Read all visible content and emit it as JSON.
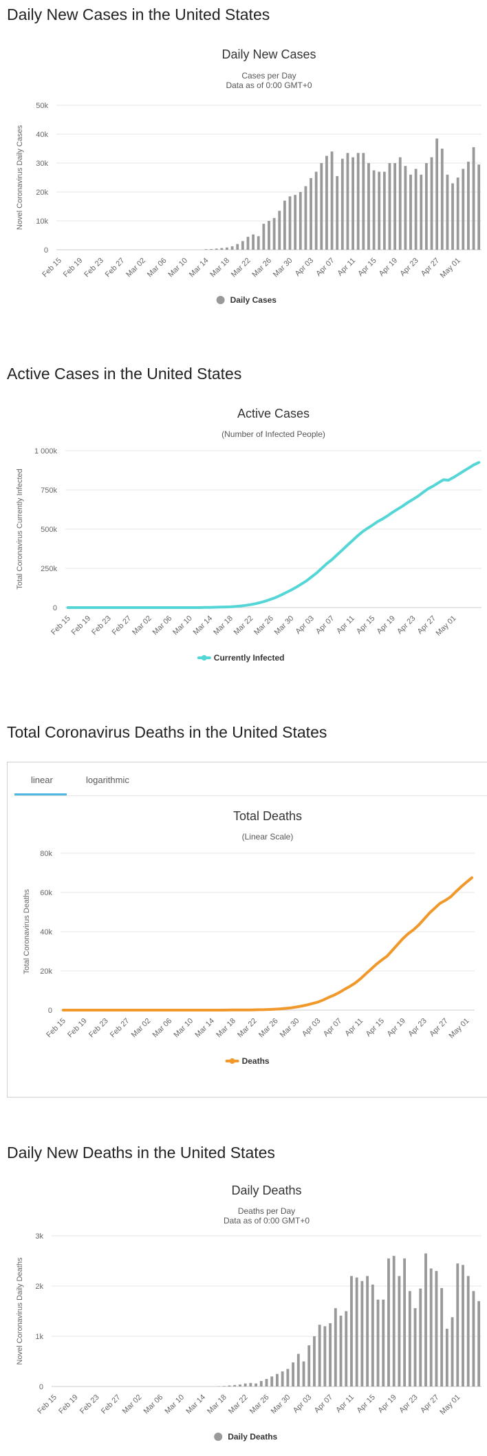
{
  "sections": [
    {
      "title": "Daily New Cases in the United States"
    },
    {
      "title": "Active Cases in the United States"
    },
    {
      "title": "Total Coronavirus Deaths in the United States"
    },
    {
      "title": "Daily New Deaths in the United States"
    }
  ],
  "deaths_tabs": {
    "linear": "linear",
    "logarithmic": "logarithmic"
  },
  "x_tick_labels": [
    "Feb 15",
    "Feb 19",
    "Feb 23",
    "Feb 27",
    "Mar 02",
    "Mar 06",
    "Mar 10",
    "Mar 14",
    "Mar 18",
    "Mar 22",
    "Mar 26",
    "Mar 30",
    "Apr 03",
    "Apr 07",
    "Apr 11",
    "Apr 15",
    "Apr 19",
    "Apr 23",
    "Apr 27",
    "May 01"
  ],
  "chart_data": [
    {
      "type": "bar",
      "title": "Daily New Cases",
      "subtitle": "Cases per Day",
      "subtitle2": "Data as of 0:00 GMT+0",
      "ylabel": "Novel Coronavirus Daily Cases",
      "ylim": [
        0,
        50000
      ],
      "yticks": [
        "0",
        "10k",
        "20k",
        "30k",
        "40k",
        "50k"
      ],
      "ytick_values": [
        0,
        10000,
        20000,
        30000,
        40000,
        50000
      ],
      "legend": {
        "label": "Daily Cases",
        "position": "bottom"
      },
      "color": "#999999",
      "series": [
        {
          "name": "Daily Cases",
          "values": [
            0,
            0,
            0,
            0,
            0,
            0,
            0,
            0,
            0,
            0,
            0,
            0,
            0,
            0,
            0,
            0,
            0,
            0,
            0,
            0,
            0,
            0,
            0,
            0,
            0,
            0,
            0,
            0,
            200,
            250,
            400,
            600,
            800,
            1200,
            2000,
            3000,
            4500,
            5300,
            4700,
            9000,
            10000,
            11000,
            13500,
            17000,
            18500,
            19000,
            20000,
            22000,
            24800,
            27000,
            30000,
            32500,
            34000,
            25500,
            31500,
            33500,
            32000,
            33500,
            33500,
            30000,
            27500,
            27000,
            27000,
            30000,
            30000,
            32000,
            29000,
            26000,
            28000,
            26000,
            30000,
            32000,
            38500,
            35000,
            26000,
            23000,
            25000,
            28000,
            30500,
            35500,
            29500
          ]
        }
      ],
      "grid": true
    },
    {
      "type": "line",
      "title": "Active Cases",
      "subtitle": "(Number of Infected People)",
      "ylabel": "Total Coronavirus Currently Infected",
      "ylim": [
        0,
        1000000
      ],
      "yticks": [
        "0",
        "250k",
        "500k",
        "750k",
        "1 000k"
      ],
      "ytick_values": [
        0,
        250000,
        500000,
        750000,
        1000000
      ],
      "legend": {
        "label": "Currently Infected",
        "position": "bottom"
      },
      "color": "#55d6d6",
      "series": [
        {
          "name": "Currently Infected",
          "values": [
            0,
            0,
            0,
            0,
            0,
            0,
            0,
            0,
            0,
            0,
            0,
            0,
            0,
            0,
            0,
            0,
            0,
            0,
            0,
            0,
            0,
            0,
            0,
            0,
            0,
            0,
            0,
            1000,
            1500,
            2000,
            3000,
            4000,
            5000,
            7000,
            10000,
            14000,
            19000,
            25000,
            33000,
            42000,
            53000,
            65000,
            80000,
            96000,
            112000,
            130000,
            150000,
            170000,
            195000,
            220000,
            250000,
            280000,
            305000,
            335000,
            365000,
            395000,
            425000,
            455000,
            482000,
            505000,
            525000,
            548000,
            565000,
            585000,
            608000,
            628000,
            648000,
            670000,
            690000,
            710000,
            735000,
            758000,
            775000,
            795000,
            815000,
            812000,
            830000,
            850000,
            870000,
            890000,
            910000,
            925000
          ]
        }
      ],
      "grid": true
    },
    {
      "type": "line",
      "title": "Total Deaths",
      "subtitle": "(Linear Scale)",
      "ylabel": "Total Coronavirus Deaths",
      "ylim": [
        0,
        80000
      ],
      "yticks": [
        "0",
        "20k",
        "40k",
        "60k",
        "80k"
      ],
      "ytick_values": [
        0,
        20000,
        40000,
        60000,
        80000
      ],
      "legend": {
        "label": "Deaths",
        "position": "bottom"
      },
      "color": "#f0982a",
      "series": [
        {
          "name": "Deaths",
          "values": [
            0,
            0,
            0,
            0,
            0,
            0,
            0,
            0,
            0,
            0,
            0,
            0,
            0,
            0,
            0,
            0,
            0,
            0,
            0,
            0,
            0,
            0,
            0,
            0,
            0,
            0,
            0,
            0,
            0,
            0,
            0,
            50,
            60,
            70,
            90,
            110,
            150,
            200,
            260,
            350,
            500,
            650,
            900,
            1200,
            1600,
            2100,
            2700,
            3400,
            4100,
            5200,
            6500,
            7600,
            9000,
            10600,
            12100,
            13800,
            16000,
            18500,
            20900,
            23400,
            25500,
            27500,
            30500,
            33500,
            36500,
            39000,
            41000,
            43500,
            46500,
            49500,
            52000,
            54500,
            56000,
            57800,
            60500,
            63000,
            65300,
            67500
          ]
        }
      ],
      "grid": true
    },
    {
      "type": "bar",
      "title": "Daily Deaths",
      "subtitle": "Deaths per Day",
      "subtitle2": "Data as of 0:00 GMT+0",
      "ylabel": "Novel Coronavirus Daily Deaths",
      "ylim": [
        0,
        3000
      ],
      "yticks": [
        "0",
        "1k",
        "2k",
        "3k"
      ],
      "ytick_values": [
        0,
        1000,
        2000,
        3000
      ],
      "legend": {
        "label": "Daily Deaths",
        "position": "bottom"
      },
      "color": "#999999",
      "series": [
        {
          "name": "Daily Deaths",
          "values": [
            0,
            0,
            0,
            0,
            0,
            0,
            0,
            0,
            0,
            0,
            0,
            0,
            0,
            0,
            0,
            0,
            0,
            0,
            0,
            0,
            0,
            0,
            0,
            0,
            0,
            0,
            0,
            0,
            0,
            0,
            0,
            5,
            10,
            20,
            30,
            40,
            60,
            70,
            60,
            110,
            150,
            200,
            250,
            300,
            350,
            480,
            650,
            500,
            820,
            1000,
            1230,
            1200,
            1260,
            1560,
            1410,
            1500,
            2200,
            2170,
            2100,
            2200,
            2030,
            1730,
            1730,
            2550,
            2600,
            2200,
            2550,
            1900,
            1560,
            1950,
            2650,
            2350,
            2300,
            1960,
            1150,
            1380,
            2450,
            2420,
            2200,
            1900,
            1700
          ]
        }
      ],
      "grid": true
    }
  ]
}
